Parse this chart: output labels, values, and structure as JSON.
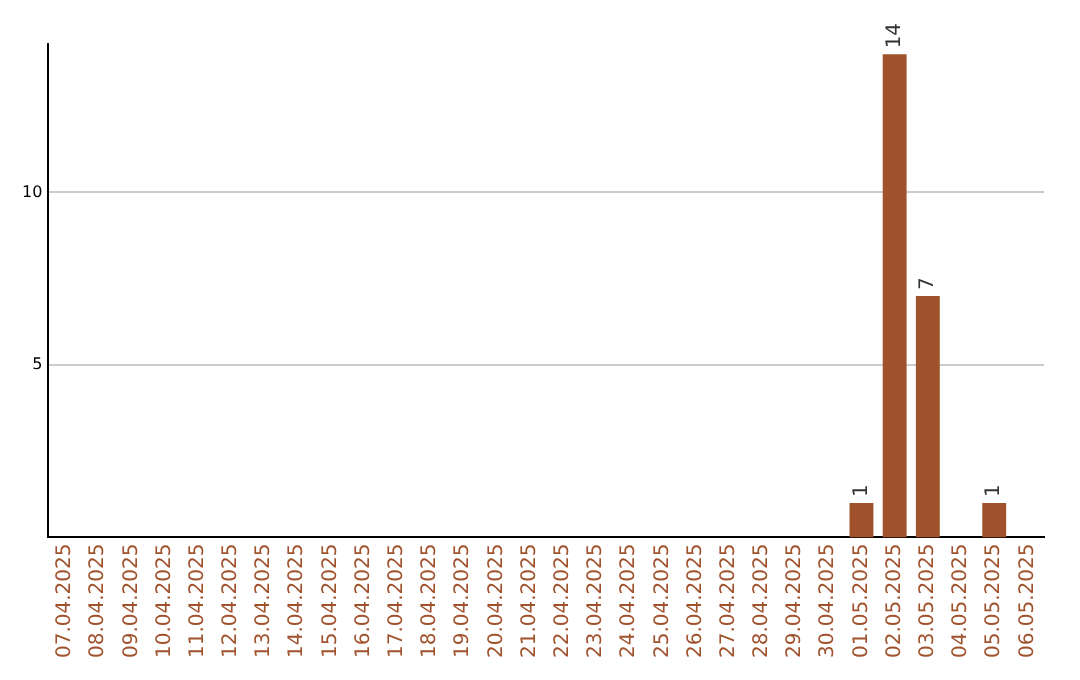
{
  "chart_data": {
    "type": "bar",
    "categories": [
      "07.04.2025",
      "08.04.2025",
      "09.04.2025",
      "10.04.2025",
      "11.04.2025",
      "12.04.2025",
      "13.04.2025",
      "14.04.2025",
      "15.04.2025",
      "16.04.2025",
      "17.04.2025",
      "18.04.2025",
      "19.04.2025",
      "20.04.2025",
      "21.04.2025",
      "22.04.2025",
      "23.04.2025",
      "24.04.2025",
      "25.04.2025",
      "26.04.2025",
      "27.04.2025",
      "28.04.2025",
      "29.04.2025",
      "30.04.2025",
      "01.05.2025",
      "02.05.2025",
      "03.05.2025",
      "04.05.2025",
      "05.05.2025",
      "06.05.2025"
    ],
    "values": [
      0,
      0,
      0,
      0,
      0,
      0,
      0,
      0,
      0,
      0,
      0,
      0,
      0,
      0,
      0,
      0,
      0,
      0,
      0,
      0,
      0,
      0,
      0,
      0,
      1,
      14,
      7,
      0,
      1,
      0
    ],
    "value_labels": [
      null,
      null,
      null,
      null,
      null,
      null,
      null,
      null,
      null,
      null,
      null,
      null,
      null,
      null,
      null,
      null,
      null,
      null,
      null,
      null,
      null,
      null,
      null,
      null,
      "1",
      "14",
      "7",
      null,
      "1",
      null
    ],
    "color": "#a0522d",
    "ylim": [
      0,
      14.3
    ],
    "yticks": [
      5,
      10
    ],
    "grid": "y",
    "legend": false
  }
}
